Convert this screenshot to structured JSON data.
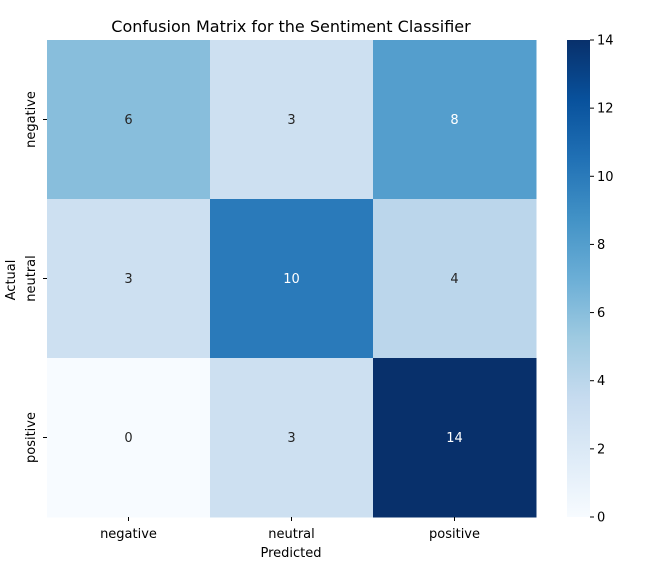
{
  "chart_data": {
    "type": "heatmap",
    "title": "Confusion Matrix for the Sentiment Classifier",
    "xlabel": "Predicted",
    "ylabel": "Actual",
    "x_categories": [
      "negative",
      "neutral",
      "positive"
    ],
    "y_categories": [
      "negative",
      "neutral",
      "positive"
    ],
    "values": [
      [
        6,
        3,
        8
      ],
      [
        3,
        10,
        4
      ],
      [
        0,
        3,
        14
      ]
    ],
    "colormap": "Blues",
    "colorbar": {
      "range": [
        0,
        14
      ],
      "ticks": [
        0,
        2,
        4,
        6,
        8,
        10,
        12,
        14
      ]
    },
    "annotation_colors": {
      "dark_text": "#262626",
      "light_text": "#ffffff"
    }
  }
}
